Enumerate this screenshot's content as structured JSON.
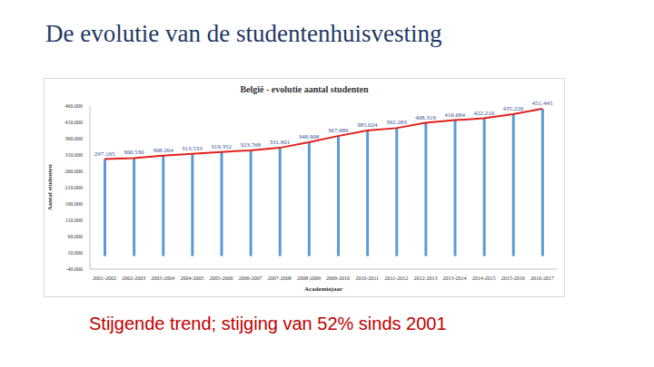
{
  "slide": {
    "title": "De evolutie van de studentenhuisvesting",
    "text": "Stijgende trend; stijging van 52% sinds 2001"
  },
  "chart_data": {
    "type": "bar",
    "title": "België - evolutie aantal studenten",
    "x_label": "Academiejaar",
    "y_label": "Aantal studenten",
    "categories": [
      "2001-2002",
      "2002-2003",
      "2003-2004",
      "2004-2005",
      "2005-2006",
      "2006-2007",
      "2007-2008",
      "2008-2009",
      "2009-2010",
      "2010-2011",
      "2011-2012",
      "2012-2013",
      "2013-2014",
      "2014-2015",
      "2015-2016",
      "2016-2017"
    ],
    "series": [
      {
        "type": "bar",
        "color": "#5b9bd5",
        "values": [
          297165,
          300530,
          308204,
          313533,
          319352,
          323768,
          331901,
          348908,
          367989,
          385024,
          392283,
          408319,
          416684,
          422210,
          435220,
          451445
        ]
      },
      {
        "type": "line",
        "color": "#e0201b",
        "data_labels": true,
        "values": [
          297165,
          300530,
          308204,
          313533,
          319352,
          323768,
          331901,
          348908,
          367989,
          385024,
          392283,
          408319,
          416684,
          422210,
          435220,
          451445
        ],
        "value_labels": [
          "297.165",
          "300.530",
          "308.204",
          "313.533",
          "319.352",
          "323.768",
          "331.901",
          "348.908",
          "367.989",
          "385.024",
          "392.283",
          "408.319",
          "416.684",
          "422.210",
          "435.220",
          "451.445"
        ]
      }
    ],
    "ylim": [
      -40000,
      460000
    ],
    "yticks": [
      {
        "value": -40000,
        "label": "-40.000"
      },
      {
        "value": 10000,
        "label": "10.000"
      },
      {
        "value": 60000,
        "label": "60.000"
      },
      {
        "value": 110000,
        "label": "110.000"
      },
      {
        "value": 160000,
        "label": "160.000"
      },
      {
        "value": 210000,
        "label": "210.000"
      },
      {
        "value": 260000,
        "label": "260.000"
      },
      {
        "value": 310000,
        "label": "310.000"
      },
      {
        "value": 360000,
        "label": "360.000"
      },
      {
        "value": 410000,
        "label": "410.000"
      },
      {
        "value": 460000,
        "label": "460.000"
      }
    ],
    "grid": false
  }
}
